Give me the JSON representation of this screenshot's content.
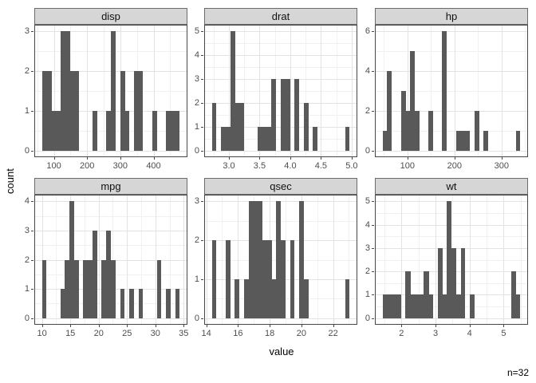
{
  "axes": {
    "x_title": "value",
    "y_title": "count"
  },
  "annotation": "n=32",
  "colors": {
    "bar_fill": "#595959",
    "strip_bg": "#d6d6d6",
    "strip_border": "#6b6b6b",
    "panel_border": "#474747",
    "grid_major": "#e3e3e3",
    "grid_minor": "#f1f1f1",
    "axis_text": "#4d4d4d",
    "tick_mark": "#474747",
    "title_text": "#000000"
  },
  "chart_data": [
    {
      "type": "histogram",
      "label": "disp",
      "bin_origin": 64.188,
      "bin_width": 13.824138,
      "counts": [
        2,
        2,
        1,
        1,
        3,
        3,
        2,
        2,
        0,
        0,
        0,
        1,
        0,
        0,
        1,
        3,
        0,
        2,
        1,
        0,
        2,
        2,
        0,
        0,
        1,
        0,
        0,
        1,
        1,
        1
      ],
      "x_range": [
        43.452,
        499.648
      ],
      "y_range": [
        -0.15,
        3.15
      ],
      "x_ticks": {
        "values": [
          100,
          200,
          300,
          400
        ],
        "labels": [
          "100",
          "200",
          "300",
          "400"
        ]
      },
      "x_minor": [
        50,
        150,
        250,
        350,
        450
      ],
      "y_ticks": {
        "values": [
          0,
          1,
          2,
          3
        ],
        "labels": [
          "0",
          "1",
          "2",
          "3"
        ]
      },
      "y_minor": [
        0.5,
        1.5,
        2.5
      ]
    },
    {
      "type": "histogram",
      "label": "drat",
      "bin_origin": 2.722586,
      "bin_width": 0.0748276,
      "counts": [
        2,
        0,
        1,
        1,
        5,
        2,
        2,
        0,
        0,
        0,
        1,
        1,
        1,
        3,
        0,
        3,
        3,
        0,
        3,
        0,
        2,
        0,
        1,
        0,
        0,
        0,
        0,
        0,
        0,
        1
      ],
      "x_range": [
        2.6103,
        5.0796
      ],
      "y_range": [
        -0.25,
        5.25
      ],
      "x_ticks": {
        "values": [
          3.0,
          3.5,
          4.0,
          4.5,
          5.0
        ],
        "labels": [
          "3.0",
          "3.5",
          "4.0",
          "4.5",
          "5.0"
        ]
      },
      "x_minor": [
        2.75,
        3.25,
        3.75,
        4.25,
        4.75
      ],
      "y_ticks": {
        "values": [
          0,
          1,
          2,
          3,
          4,
          5
        ],
        "labels": [
          "0",
          "1",
          "2",
          "3",
          "4",
          "5"
        ]
      },
      "y_minor": [
        0.5,
        1.5,
        2.5,
        3.5,
        4.5
      ]
    },
    {
      "type": "histogram",
      "label": "hp",
      "bin_origin": 47.12069,
      "bin_width": 9.758621,
      "counts": [
        1,
        4,
        0,
        0,
        3,
        2,
        5,
        2,
        0,
        0,
        2,
        0,
        0,
        6,
        0,
        0,
        1,
        1,
        1,
        0,
        2,
        0,
        1,
        0,
        0,
        0,
        0,
        0,
        0,
        1
      ],
      "x_range": [
        32.483,
        354.517
      ],
      "y_range": [
        -0.3,
        6.3
      ],
      "x_ticks": {
        "values": [
          100,
          200,
          300
        ],
        "labels": [
          "100",
          "200",
          "300"
        ]
      },
      "x_minor": [
        50,
        150,
        250,
        350
      ],
      "y_ticks": {
        "values": [
          0,
          2,
          4,
          6
        ],
        "labels": [
          "0",
          "2",
          "4",
          "6"
        ]
      },
      "y_minor": [
        1,
        3,
        5
      ]
    },
    {
      "type": "histogram",
      "label": "mpg",
      "bin_origin": 9.994828,
      "bin_width": 0.8103448,
      "counts": [
        2,
        0,
        0,
        0,
        1,
        2,
        4,
        2,
        0,
        2,
        2,
        3,
        0,
        2,
        3,
        2,
        0,
        1,
        0,
        1,
        0,
        1,
        0,
        0,
        0,
        2,
        0,
        1,
        0,
        1
      ],
      "x_range": [
        8.7793,
        35.5207
      ],
      "y_range": [
        -0.2,
        4.2
      ],
      "x_ticks": {
        "values": [
          10,
          15,
          20,
          25,
          30,
          35
        ],
        "labels": [
          "10",
          "15",
          "20",
          "25",
          "30",
          "35"
        ]
      },
      "x_minor": [
        12.5,
        17.5,
        22.5,
        27.5,
        32.5
      ],
      "y_ticks": {
        "values": [
          0,
          1,
          2,
          3,
          4
        ],
        "labels": [
          "0",
          "1",
          "2",
          "3",
          "4"
        ]
      },
      "y_minor": [
        0.5,
        1.5,
        2.5,
        3.5
      ]
    },
    {
      "type": "histogram",
      "label": "qsec",
      "bin_origin": 14.355172,
      "bin_width": 0.2896552,
      "counts": [
        2,
        0,
        0,
        2,
        0,
        1,
        0,
        1,
        3,
        3,
        3,
        2,
        2,
        1,
        3,
        2,
        0,
        2,
        0,
        3,
        1,
        0,
        0,
        0,
        0,
        0,
        0,
        0,
        0,
        1
      ],
      "x_range": [
        13.9207,
        23.4793
      ],
      "y_range": [
        -0.15,
        3.15
      ],
      "x_ticks": {
        "values": [
          14,
          16,
          18,
          20,
          22
        ],
        "labels": [
          "14",
          "16",
          "18",
          "20",
          "22"
        ]
      },
      "x_minor": [
        15,
        17,
        19,
        21,
        23
      ],
      "y_ticks": {
        "values": [
          0,
          1,
          2,
          3
        ],
        "labels": [
          "0",
          "1",
          "2",
          "3"
        ]
      },
      "y_minor": [
        0.5,
        1.5,
        2.5
      ]
    },
    {
      "type": "histogram",
      "label": "wt",
      "bin_origin": 1.445569,
      "bin_width": 0.1348621,
      "counts": [
        1,
        1,
        1,
        1,
        0,
        2,
        1,
        1,
        1,
        2,
        1,
        0,
        3,
        1,
        5,
        3,
        1,
        3,
        0,
        1,
        0,
        0,
        0,
        0,
        0,
        0,
        0,
        0,
        2,
        1
      ],
      "x_range": [
        1.2433,
        5.6937
      ],
      "y_range": [
        -0.25,
        5.25
      ],
      "x_ticks": {
        "values": [
          2,
          3,
          4,
          5
        ],
        "labels": [
          "2",
          "3",
          "4",
          "5"
        ]
      },
      "x_minor": [
        1.5,
        2.5,
        3.5,
        4.5,
        5.5
      ],
      "y_ticks": {
        "values": [
          0,
          1,
          2,
          3,
          4,
          5
        ],
        "labels": [
          "0",
          "1",
          "2",
          "3",
          "4",
          "5"
        ]
      },
      "y_minor": [
        0.5,
        1.5,
        2.5,
        3.5,
        4.5
      ]
    }
  ]
}
